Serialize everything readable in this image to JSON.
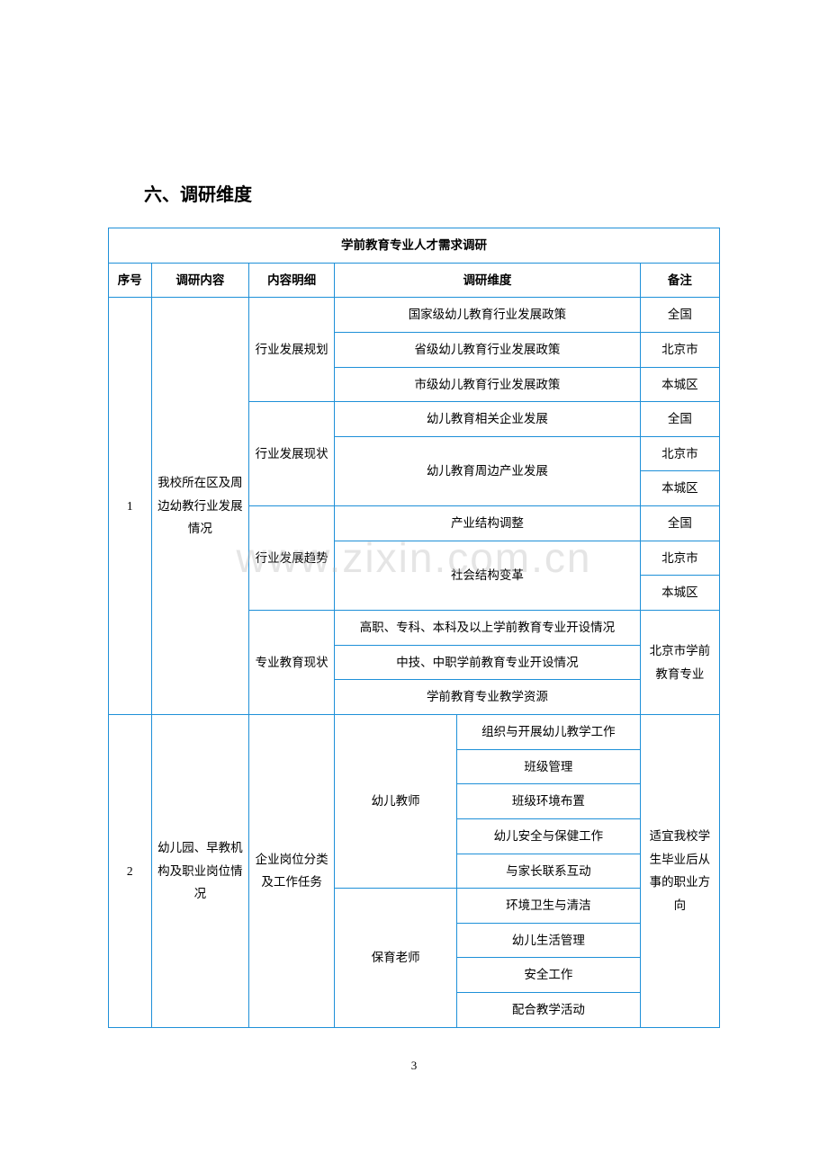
{
  "heading": "六、调研维度",
  "table": {
    "title": "学前教育专业人才需求调研",
    "headers": {
      "h1": "序号",
      "h2": "调研内容",
      "h3": "内容明细",
      "h4": "调研维度",
      "h5": "备注"
    },
    "section1": {
      "num": "1",
      "content": "我校所在区及周边幼教行业发展情况",
      "g1": {
        "detail": "行业发展规划",
        "r1": "国家级幼儿教育行业发展政策",
        "r2": "省级幼儿教育行业发展政策",
        "r3": "市级幼儿教育行业发展政策",
        "n1": "全国",
        "n2": "北京市",
        "n3": "本城区"
      },
      "g2": {
        "detail": "行业发展现状",
        "r1": "幼儿教育相关企业发展",
        "r2": "幼儿教育周边产业发展",
        "n1": "全国",
        "n2": "北京市",
        "n3": "本城区"
      },
      "g3": {
        "detail": "行业发展趋势",
        "r1": "产业结构调整",
        "r2": "社会结构变革",
        "n1": "全国",
        "n2": "北京市",
        "n3": "本城区"
      },
      "g4": {
        "detail": "专业教育现状",
        "r1": "高职、专科、本科及以上学前教育专业开设情况",
        "r2": "中技、中职学前教育专业开设情况",
        "r3": "学前教育专业教学资源",
        "note": "北京市学前教育专业"
      }
    },
    "section2": {
      "num": "2",
      "content": "幼儿园、早教机构及职业岗位情况",
      "detail": "企业岗位分类及工作任务",
      "sub1": {
        "label": "幼儿教师",
        "r1": "组织与开展幼儿教学工作",
        "r2": "班级管理",
        "r3": "班级环境布置",
        "r4": "幼儿安全与保健工作",
        "r5": "与家长联系互动"
      },
      "sub2": {
        "label": "保育老师",
        "r1": "环境卫生与清洁",
        "r2": "幼儿生活管理",
        "r3": "安全工作",
        "r4": "配合教学活动"
      },
      "note": "适宜我校学生毕业后从事的职业方向"
    }
  },
  "watermark": "www.zixin.com.cn",
  "pagenum": "3"
}
